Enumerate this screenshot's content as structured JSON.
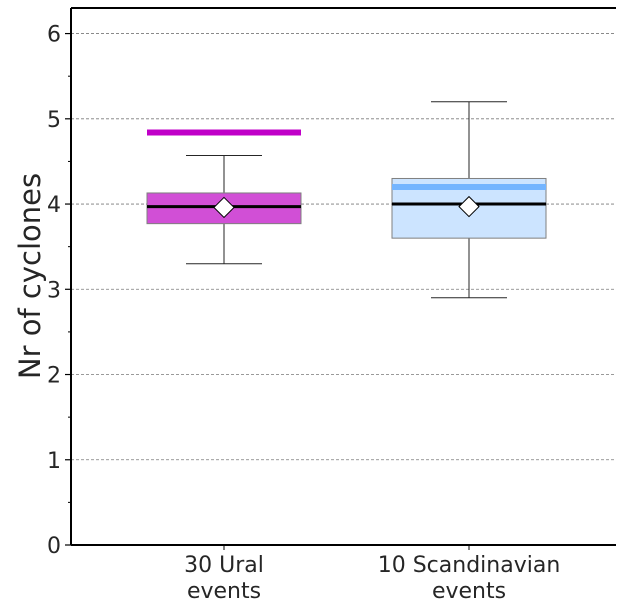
{
  "chart_data": {
    "type": "box",
    "ylabel": "Nr of cyclones",
    "ylim": [
      0,
      6.3
    ],
    "yticks": [
      "0",
      "1",
      "2",
      "3",
      "4",
      "5",
      "6"
    ],
    "grid": "horizontal dashed",
    "categories": [
      [
        "30 Ural",
        "events"
      ],
      [
        "10 Scandinavian",
        "events"
      ]
    ],
    "boxes": [
      {
        "whisker_low": 3.3,
        "q1": 3.77,
        "median": 3.97,
        "q3": 4.13,
        "whisker_high": 4.57,
        "mean": 3.96,
        "reference_line": 4.84,
        "box_color": "#d14fd6",
        "reference_color": "#c000c8"
      },
      {
        "whisker_low": 2.9,
        "q1": 3.6,
        "median": 4.0,
        "q3": 4.3,
        "whisker_high": 5.2,
        "mean": 3.97,
        "reference_line": 4.2,
        "box_color": "#cce4ff",
        "reference_color": "#74b5ff"
      }
    ]
  }
}
